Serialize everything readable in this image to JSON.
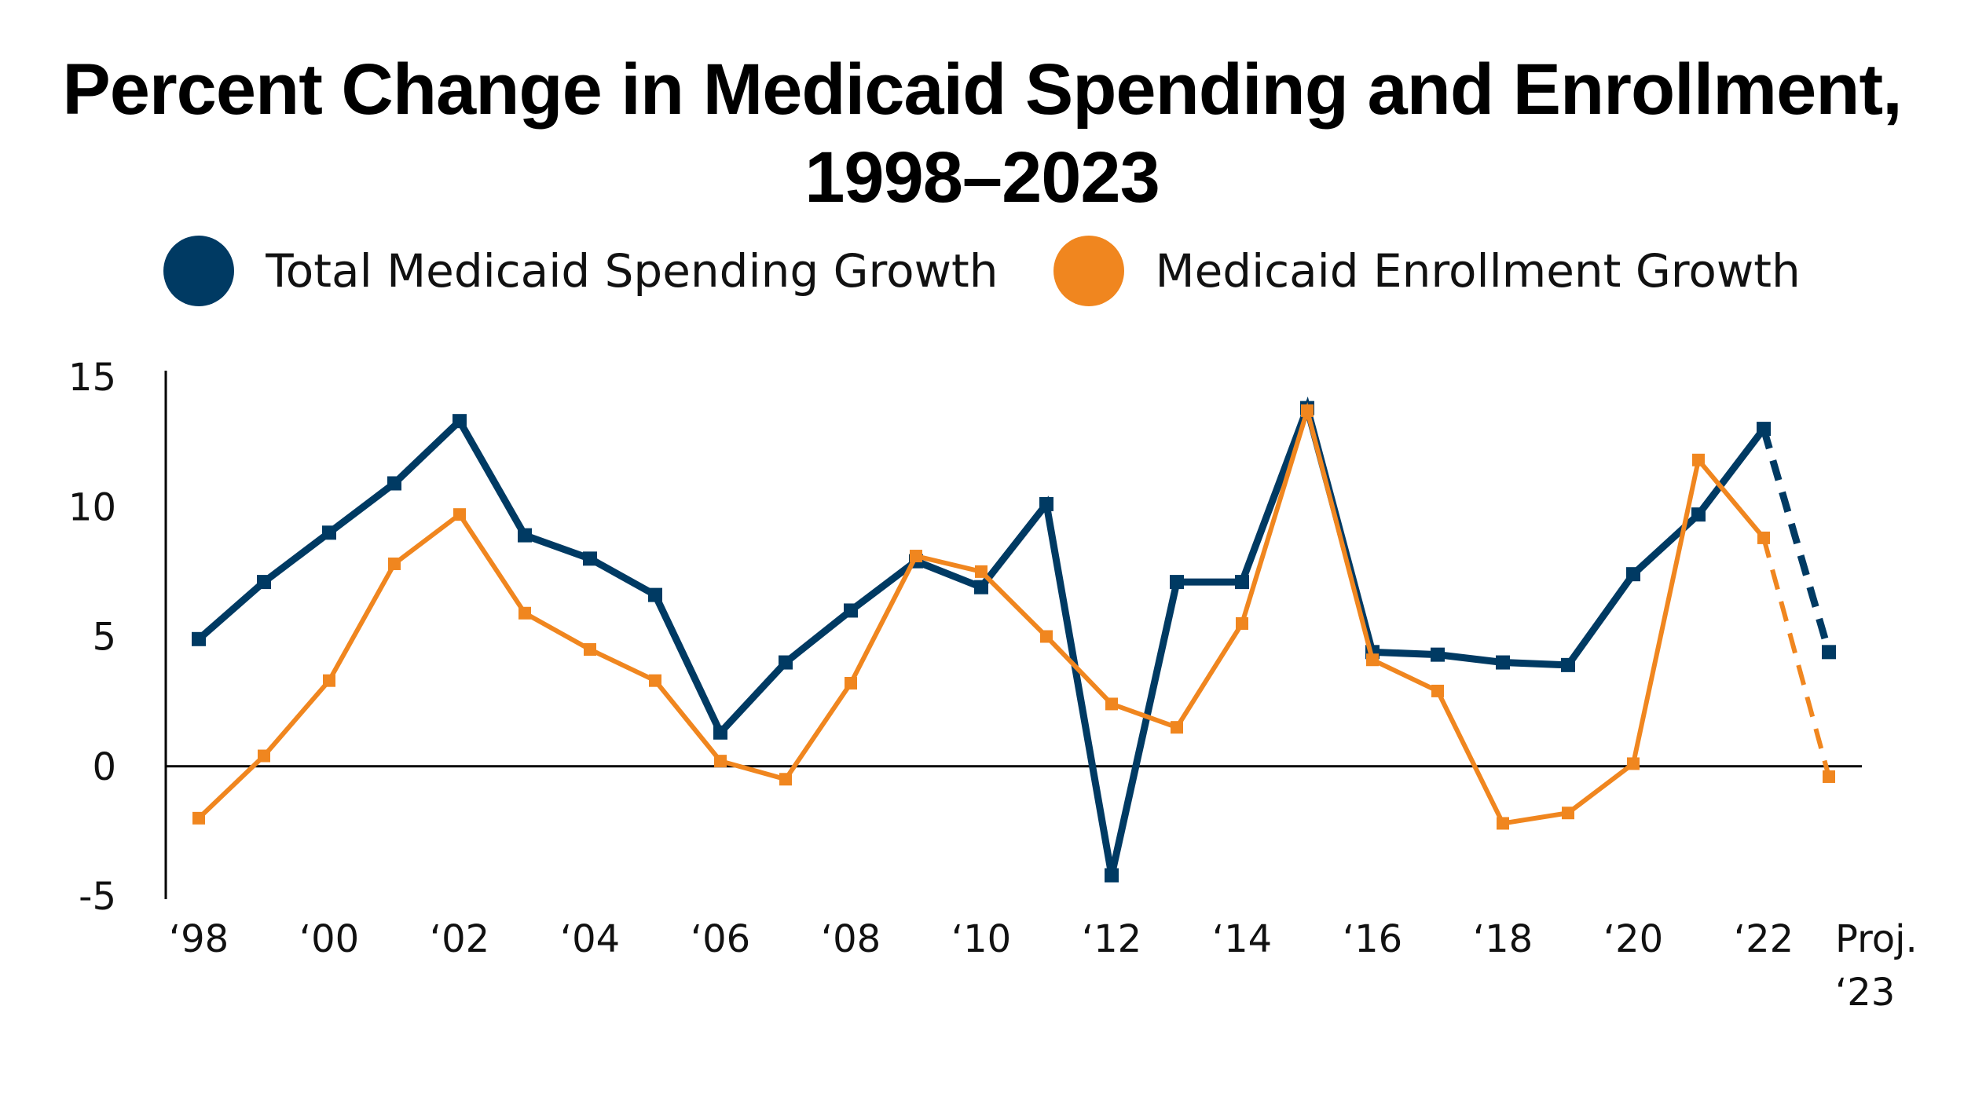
{
  "chart_data": {
    "type": "line",
    "title": "Percent Change in Medicaid Spending and Enrollment, 1998–2023",
    "title_lines": [
      "Percent Change in Medicaid Spending and Enrollment,",
      "1998–2023"
    ],
    "xlabel": "",
    "ylabel": "",
    "ylim": [
      -5,
      15
    ],
    "yticks": [
      "15",
      "10",
      "5",
      "0",
      "-5"
    ],
    "ytick_values": [
      15,
      10,
      5,
      0,
      -5
    ],
    "x": [
      "1998",
      "1999",
      "2000",
      "2001",
      "2002",
      "2003",
      "2004",
      "2005",
      "2006",
      "2007",
      "2008",
      "2009",
      "2010",
      "2011",
      "2012",
      "2013",
      "2014",
      "2015",
      "2016",
      "2017",
      "2018",
      "2019",
      "2020",
      "2021",
      "2022",
      "2023 (proj.)"
    ],
    "xtick_labels": [
      {
        "index": 0,
        "label": "‘98"
      },
      {
        "index": 2,
        "label": "‘00"
      },
      {
        "index": 4,
        "label": "‘02"
      },
      {
        "index": 6,
        "label": "‘04"
      },
      {
        "index": 8,
        "label": "‘06"
      },
      {
        "index": 10,
        "label": "‘08"
      },
      {
        "index": 12,
        "label": "‘10"
      },
      {
        "index": 14,
        "label": "‘12"
      },
      {
        "index": 16,
        "label": "‘14"
      },
      {
        "index": 18,
        "label": "‘16"
      },
      {
        "index": 20,
        "label": "‘18"
      },
      {
        "index": 22,
        "label": "‘20"
      },
      {
        "index": 24,
        "label": "‘22"
      },
      {
        "index": 25,
        "label": "Proj.",
        "label2": "‘23"
      }
    ],
    "grid": false,
    "legend_position": "top",
    "projected_from_index": 24,
    "series": [
      {
        "name": "Total Medicaid Spending Growth",
        "color": "#003a63",
        "values": [
          4.9,
          7.1,
          9.0,
          10.9,
          13.3,
          8.9,
          8.0,
          6.6,
          1.3,
          4.0,
          6.0,
          7.9,
          6.9,
          10.1,
          -4.2,
          7.1,
          7.1,
          13.8,
          4.4,
          4.3,
          4.0,
          3.9,
          7.4,
          9.7,
          13.0,
          4.4
        ]
      },
      {
        "name": "Medicaid Enrollment Growth",
        "color": "#f0861f",
        "values": [
          -2.0,
          0.4,
          3.3,
          7.8,
          9.7,
          5.9,
          4.5,
          3.3,
          0.2,
          -0.5,
          3.2,
          8.1,
          7.5,
          5.0,
          2.4,
          1.5,
          5.5,
          13.7,
          4.1,
          2.9,
          -2.2,
          -1.8,
          0.1,
          11.8,
          8.8,
          -0.4
        ]
      }
    ]
  }
}
